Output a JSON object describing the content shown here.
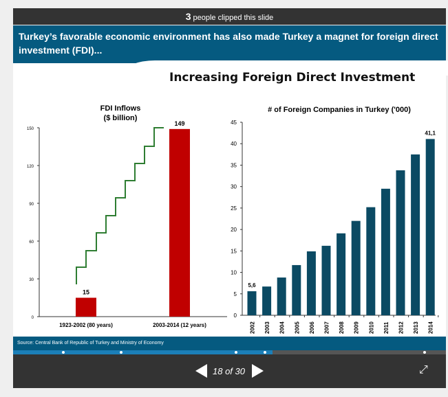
{
  "topbar": {
    "count": "3",
    "text": "people clipped this slide"
  },
  "slide": {
    "header": "Turkey’s favorable economic environment has also made Turkey a magnet for foreign direct investment (FDI)...",
    "title": "Increasing Foreign Direct Investment",
    "source": "Source: Central Bank of Republic of Turkey  and Ministry of Economy"
  },
  "nav": {
    "counter": "18 of 30",
    "current": 18,
    "total": 30
  },
  "colors": {
    "header": "#055a80",
    "fdi_bar": "#c00000",
    "company_bar": "#0b4a63",
    "step_line": "#2e7d32"
  },
  "chart_data": [
    {
      "type": "bar",
      "title": "FDI Inflows",
      "subtitle": "($ billion)",
      "categories": [
        "1923-2002 (80 years)",
        "2003-2014 (12 years)"
      ],
      "values": [
        15,
        149
      ],
      "data_labels": [
        "15",
        "149"
      ],
      "ylim": [
        0,
        150
      ],
      "yticks": [
        0,
        30,
        60,
        90,
        120,
        150
      ],
      "annotation": "green staircase arrow rising from first to second bar"
    },
    {
      "type": "bar",
      "title": "# of Foreign Companies in Turkey ('000)",
      "categories": [
        "2002",
        "2003",
        "2004",
        "2005",
        "2006",
        "2007",
        "2008",
        "2009",
        "2010",
        "2011",
        "2012",
        "2013",
        "2014"
      ],
      "values": [
        5.6,
        6.7,
        8.8,
        11.7,
        14.9,
        16.2,
        19.1,
        22.0,
        25.2,
        29.5,
        33.8,
        37.5,
        41.1
      ],
      "data_labels": {
        "0": "5,6",
        "12": "41,1"
      },
      "ylim": [
        0,
        45
      ],
      "yticks": [
        0,
        5,
        10,
        15,
        20,
        25,
        30,
        35,
        40,
        45
      ]
    }
  ]
}
